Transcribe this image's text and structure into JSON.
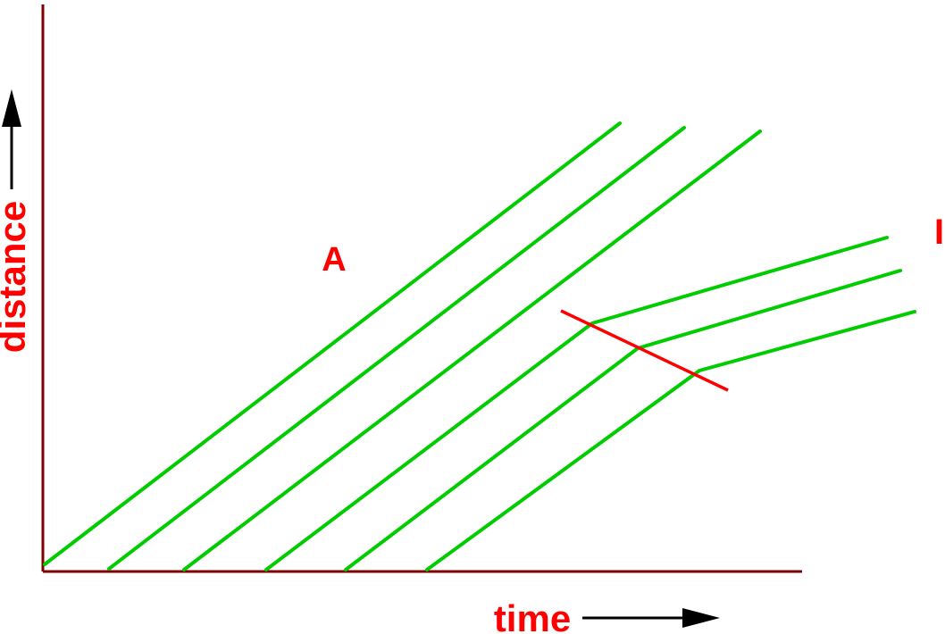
{
  "diagram": {
    "axes": {
      "x_label": "time",
      "y_label": "distance",
      "axis_color": "#800000",
      "label_color": "#ff0000",
      "arrow_color": "#000000"
    },
    "region_labels": {
      "a": "A",
      "b": "I"
    },
    "colors": {
      "trajectory": "#00cc00",
      "transition": "#ff0000"
    }
  }
}
